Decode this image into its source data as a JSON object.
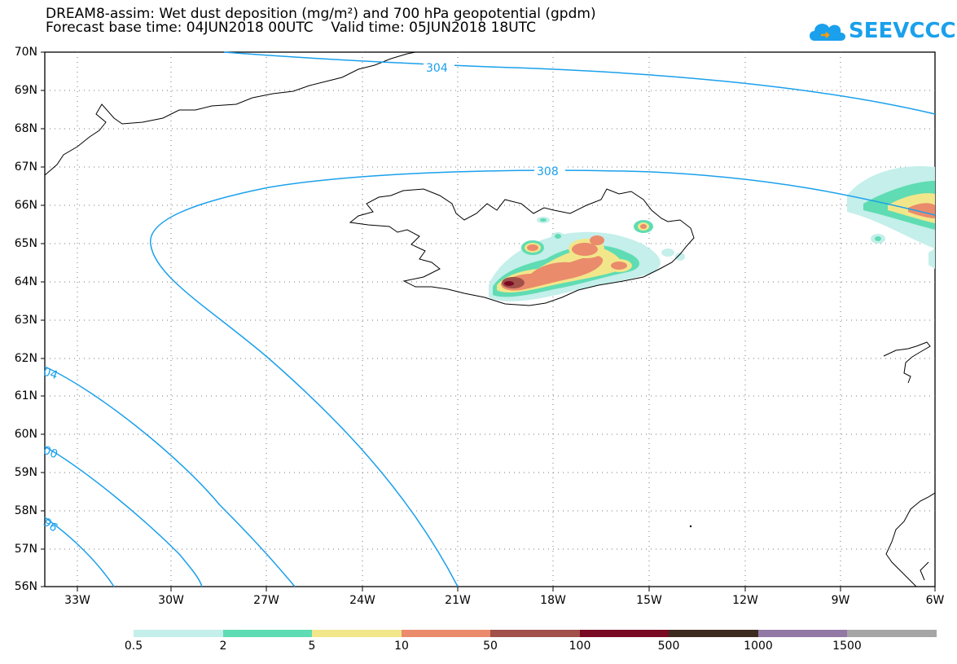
{
  "header": {
    "title_line_1": "DREAM8-assim: Wet dust deposition (mg/m²) and 700 hPa geopotential (gpdm)",
    "title_line_2": "Forecast base time: 04JUN2018 00UTC    Valid time: 05JUN2018 18UTC"
  },
  "logo": {
    "text": "SEEVCCC",
    "color": "#1aa0ec"
  },
  "map": {
    "latitude_labels": [
      "70N",
      "69N",
      "68N",
      "67N",
      "66N",
      "65N",
      "64N",
      "63N",
      "62N",
      "61N",
      "60N",
      "59N",
      "58N",
      "57N",
      "56N"
    ],
    "longitude_labels": [
      "33W",
      "30W",
      "27W",
      "24W",
      "21W",
      "18W",
      "15W",
      "12W",
      "9W",
      "6W"
    ],
    "grid": "dotted",
    "contour_labels": [
      "304",
      "308",
      "04",
      "00",
      "96"
    ],
    "contour_color": "#1aa0ec"
  },
  "legend": {
    "labels": [
      "0.5",
      "2",
      "5",
      "10",
      "50",
      "100",
      "500",
      "1000",
      "1500"
    ],
    "colors": [
      "#c4efea",
      "#5fdcb3",
      "#f2e68a",
      "#ea8b6c",
      "#a1504a",
      "#7a0b24",
      "#3e2b20",
      "#9178a5",
      "#a6a6a6"
    ]
  }
}
